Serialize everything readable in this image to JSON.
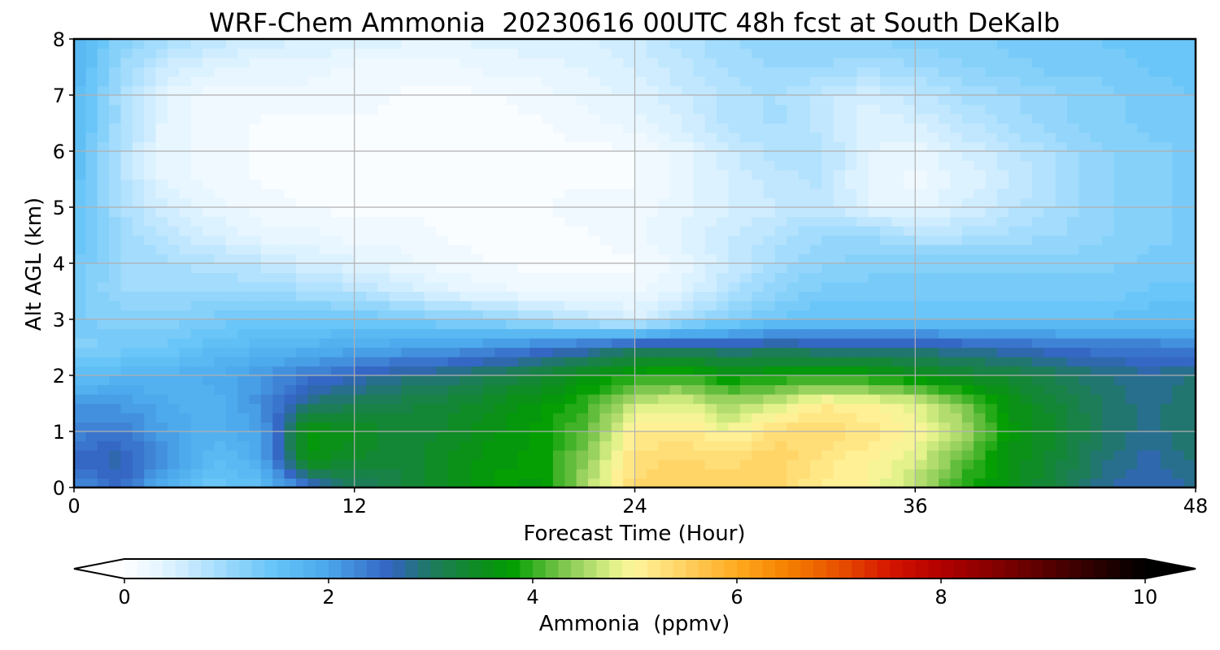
{
  "chart_data": {
    "type": "heatmap",
    "title": "WRF-Chem Ammonia  20230616 00UTC 48h fcst at South DeKalb",
    "xlabel": "Forecast Time (Hour)",
    "ylabel": "Alt AGL (km)",
    "xlim": [
      0,
      48
    ],
    "ylim": [
      0,
      8
    ],
    "x_ticks": [
      0,
      12,
      24,
      36,
      48
    ],
    "y_ticks": [
      0,
      1,
      2,
      3,
      4,
      5,
      6,
      7,
      8
    ],
    "grid": true,
    "colorbar": {
      "label": "Ammonia  (ppmv)",
      "range": [
        0,
        10
      ],
      "ticks": [
        0,
        2,
        4,
        6,
        8,
        10
      ],
      "extend": "both",
      "orientation": "horizontal",
      "placement": "bottom",
      "color_stops": [
        {
          "v": 0.0,
          "c": "#ffffff"
        },
        {
          "v": 0.5,
          "c": "#d8f0ff"
        },
        {
          "v": 1.0,
          "c": "#9bd9fb"
        },
        {
          "v": 1.5,
          "c": "#63c3f7"
        },
        {
          "v": 2.0,
          "c": "#4aa6ea"
        },
        {
          "v": 2.6,
          "c": "#3463c2"
        },
        {
          "v": 3.0,
          "c": "#1e7a60"
        },
        {
          "v": 3.5,
          "c": "#0e8e1e"
        },
        {
          "v": 3.8,
          "c": "#029e02"
        },
        {
          "v": 4.3,
          "c": "#7ec64e"
        },
        {
          "v": 4.8,
          "c": "#e1f28a"
        },
        {
          "v": 5.0,
          "c": "#fff59c"
        },
        {
          "v": 5.5,
          "c": "#ffd060"
        },
        {
          "v": 6.0,
          "c": "#ffaa20"
        },
        {
          "v": 6.5,
          "c": "#f58000"
        },
        {
          "v": 7.0,
          "c": "#e85000"
        },
        {
          "v": 7.5,
          "c": "#d41500"
        },
        {
          "v": 8.0,
          "c": "#b30000"
        },
        {
          "v": 9.0,
          "c": "#5a0000"
        },
        {
          "v": 10.0,
          "c": "#000000"
        }
      ]
    },
    "grid_hours": [
      0,
      2,
      4,
      6,
      8,
      10,
      12,
      14,
      16,
      18,
      20,
      22,
      24,
      26,
      28,
      30,
      32,
      34,
      36,
      38,
      40,
      42,
      44,
      46,
      48
    ],
    "grid_alt_km": [
      0,
      0.5,
      1,
      1.5,
      2,
      2.5,
      3,
      3.5,
      4,
      4.5,
      5,
      5.5,
      6,
      6.5,
      7,
      7.5,
      8
    ],
    "values": [
      [
        2.2,
        2.5,
        1.8,
        1.4,
        1.6,
        2.4,
        3.0,
        3.2,
        3.5,
        3.8,
        3.7,
        4.6,
        5.4,
        5.5,
        5.5,
        5.4,
        5.1,
        5.0,
        4.6,
        3.9,
        3.6,
        3.2,
        2.8,
        2.6,
        2.8
      ],
      [
        2.6,
        2.7,
        2.2,
        1.6,
        1.9,
        3.6,
        3.4,
        3.3,
        3.5,
        3.7,
        3.8,
        4.4,
        5.3,
        5.4,
        5.3,
        5.5,
        5.2,
        5.0,
        4.8,
        4.2,
        3.6,
        3.3,
        2.9,
        2.7,
        2.9
      ],
      [
        2.3,
        2.4,
        2.0,
        1.8,
        2.0,
        3.7,
        3.5,
        3.3,
        3.4,
        3.6,
        3.8,
        4.2,
        5.1,
        5.2,
        4.9,
        5.3,
        5.4,
        5.2,
        5.0,
        4.6,
        3.7,
        3.4,
        3.0,
        2.8,
        3.0
      ],
      [
        2.1,
        2.1,
        1.9,
        1.8,
        2.2,
        2.9,
        3.1,
        3.2,
        3.3,
        3.5,
        3.7,
        4.0,
        4.7,
        4.8,
        4.5,
        4.7,
        5.1,
        5.0,
        4.8,
        4.3,
        3.6,
        3.3,
        3.0,
        2.8,
        3.0
      ],
      [
        1.6,
        1.7,
        1.8,
        1.9,
        2.1,
        2.4,
        2.6,
        2.8,
        2.9,
        3.1,
        3.3,
        3.6,
        3.9,
        4.0,
        3.7,
        3.8,
        3.9,
        3.8,
        3.6,
        3.4,
        3.3,
        3.1,
        2.9,
        2.8,
        2.9
      ],
      [
        1.2,
        1.3,
        1.4,
        1.6,
        1.7,
        1.8,
        1.9,
        2.0,
        2.1,
        2.2,
        2.4,
        2.6,
        2.9,
        2.9,
        2.8,
        2.9,
        2.8,
        2.8,
        2.8,
        2.7,
        2.6,
        2.5,
        2.4,
        2.4,
        2.3
      ],
      [
        1.3,
        1.2,
        1.2,
        1.3,
        1.4,
        1.4,
        1.4,
        1.3,
        1.2,
        1.1,
        0.9,
        0.7,
        0.5,
        0.9,
        1.2,
        1.4,
        1.5,
        1.5,
        1.5,
        1.5,
        1.5,
        1.5,
        1.5,
        1.6,
        1.6
      ],
      [
        1.3,
        1.0,
        1.0,
        1.0,
        1.0,
        0.9,
        0.8,
        0.6,
        0.4,
        0.3,
        0.2,
        0.2,
        0.2,
        0.4,
        0.8,
        1.1,
        1.3,
        1.3,
        1.3,
        1.3,
        1.3,
        1.3,
        1.3,
        1.4,
        1.4
      ],
      [
        1.4,
        1.0,
        0.9,
        0.8,
        0.7,
        0.5,
        0.4,
        0.3,
        0.2,
        0.1,
        0.1,
        0.1,
        0.1,
        0.3,
        0.6,
        0.9,
        1.1,
        1.2,
        1.2,
        1.2,
        1.2,
        1.2,
        1.2,
        1.3,
        1.3
      ],
      [
        1.5,
        1.0,
        0.7,
        0.5,
        0.3,
        0.3,
        0.2,
        0.2,
        0.1,
        0.1,
        0.1,
        0.1,
        0.2,
        0.4,
        0.6,
        0.8,
        1.0,
        1.0,
        0.8,
        0.8,
        0.9,
        1.0,
        1.1,
        1.2,
        1.3
      ],
      [
        1.5,
        0.9,
        0.5,
        0.3,
        0.2,
        0.1,
        0.1,
        0.1,
        0.1,
        0.1,
        0.1,
        0.2,
        0.2,
        0.3,
        0.5,
        0.6,
        0.7,
        0.4,
        0.3,
        0.5,
        0.7,
        0.9,
        1.1,
        1.2,
        1.3
      ],
      [
        1.6,
        0.8,
        0.3,
        0.2,
        0.1,
        0.1,
        0.1,
        0.1,
        0.1,
        0.1,
        0.1,
        0.1,
        0.1,
        0.3,
        0.5,
        0.7,
        0.8,
        0.3,
        0.2,
        0.4,
        0.6,
        0.9,
        1.1,
        1.2,
        1.3
      ],
      [
        1.6,
        0.8,
        0.3,
        0.2,
        0.1,
        0.1,
        0.1,
        0.1,
        0.1,
        0.1,
        0.1,
        0.1,
        0.1,
        0.3,
        0.6,
        0.8,
        0.8,
        0.4,
        0.3,
        0.5,
        0.7,
        0.9,
        1.1,
        1.2,
        1.3
      ],
      [
        1.7,
        0.9,
        0.3,
        0.2,
        0.1,
        0.1,
        0.1,
        0.1,
        0.1,
        0.1,
        0.1,
        0.2,
        0.3,
        0.5,
        0.8,
        0.9,
        0.7,
        0.4,
        0.5,
        0.7,
        0.9,
        1.1,
        1.2,
        1.3,
        1.3
      ],
      [
        1.7,
        0.9,
        0.3,
        0.2,
        0.2,
        0.2,
        0.2,
        0.1,
        0.1,
        0.1,
        0.2,
        0.3,
        0.4,
        0.6,
        0.8,
        0.9,
        0.7,
        0.5,
        0.7,
        0.9,
        1.0,
        1.1,
        1.2,
        1.3,
        1.4
      ],
      [
        1.8,
        1.0,
        0.6,
        0.4,
        0.3,
        0.3,
        0.2,
        0.2,
        0.2,
        0.3,
        0.3,
        0.4,
        0.5,
        0.7,
        0.9,
        1.0,
        1.0,
        0.9,
        1.0,
        1.1,
        1.2,
        1.3,
        1.3,
        1.4,
        1.4
      ],
      [
        1.8,
        1.2,
        0.9,
        0.7,
        0.6,
        0.5,
        0.5,
        0.4,
        0.4,
        0.4,
        0.5,
        0.5,
        0.6,
        0.8,
        1.0,
        1.1,
        1.1,
        1.1,
        1.2,
        1.2,
        1.3,
        1.3,
        1.4,
        1.4,
        1.4
      ]
    ]
  }
}
